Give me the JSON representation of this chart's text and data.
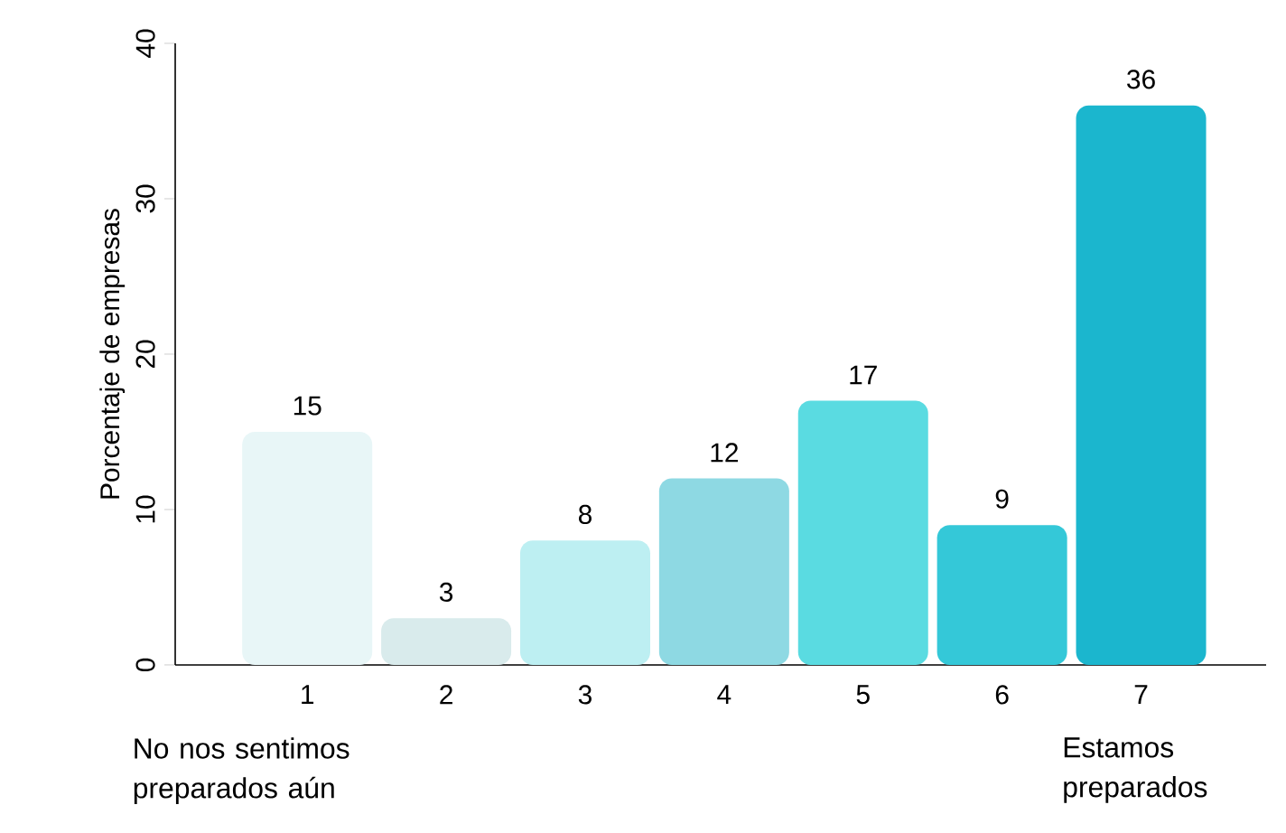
{
  "chart_data": {
    "type": "bar",
    "ylabel": "Porcentaje de empresas",
    "categories": [
      "1",
      "2",
      "3",
      "4",
      "5",
      "6",
      "7"
    ],
    "values": [
      15,
      3,
      8,
      12,
      17,
      9,
      36
    ],
    "colors": [
      "#e8f6f7",
      "#d9ebec",
      "#bdeff2",
      "#8ed9e3",
      "#5adbe1",
      "#34c8d8",
      "#1bb6ce"
    ],
    "ylim": [
      0,
      40
    ],
    "yticks": [
      0,
      10,
      20,
      30,
      40
    ],
    "data_labels": true,
    "annotations": [
      "No nos sentimos preparados aún",
      "Estamos preparados"
    ]
  }
}
